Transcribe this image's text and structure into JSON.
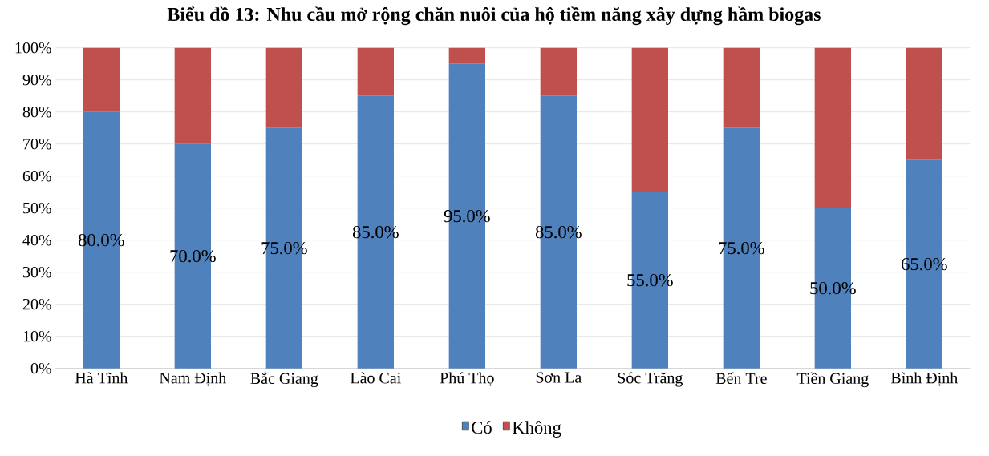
{
  "chart_data": {
    "type": "bar",
    "stacked": true,
    "title": "Biểu đồ 13: Nhu cầu mở rộng chăn nuôi của hộ tiềm năng xây dựng hầm biogas",
    "categories": [
      "Hà Tĩnh",
      "Nam Định",
      "Bắc Giang",
      "Lào Cai",
      "Phú Thọ",
      "Sơn La",
      "Sóc Trăng",
      "Bến Tre",
      "Tiền Giang",
      "Bình Định"
    ],
    "series": [
      {
        "name": "Có",
        "color": "#4f81bd",
        "values": [
          80,
          70,
          75,
          85,
          95,
          85,
          55,
          75,
          50,
          65
        ],
        "value_labels": [
          "80.0%",
          "70.0%",
          "75.0%",
          "85.0%",
          "95.0%",
          "85.0%",
          "55.0%",
          "75.0%",
          "50.0%",
          "65.0%"
        ]
      },
      {
        "name": "Không",
        "color": "#c0504d",
        "values": [
          20,
          30,
          25,
          15,
          5,
          15,
          45,
          25,
          50,
          35
        ]
      }
    ],
    "ylim": [
      0,
      100
    ],
    "yticks": [
      {
        "value": 0,
        "label": "0%"
      },
      {
        "value": 10,
        "label": "10%"
      },
      {
        "value": 20,
        "label": "20%"
      },
      {
        "value": 30,
        "label": "30%"
      },
      {
        "value": 40,
        "label": "40%"
      },
      {
        "value": 50,
        "label": "50%"
      },
      {
        "value": 60,
        "label": "60%"
      },
      {
        "value": 70,
        "label": "70%"
      },
      {
        "value": 80,
        "label": "80%"
      },
      {
        "value": 90,
        "label": "90%"
      },
      {
        "value": 100,
        "label": "100%"
      }
    ],
    "grid": "y",
    "legend": "bottom"
  }
}
